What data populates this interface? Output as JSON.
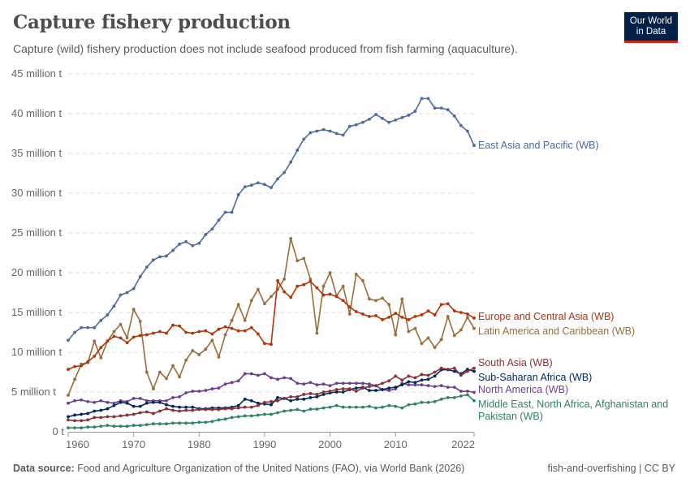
{
  "header": {
    "title": "Capture fishery production",
    "subtitle": "Capture (wild) fishery production does not include seafood produced from fish farming (aquaculture).",
    "logo_line1": "Our World",
    "logo_line2": "in Data"
  },
  "footer": {
    "source_label": "Data source:",
    "source_text": "Food and Agriculture Organization of the United Nations (FAO), via World Bank (2026)",
    "right": "fish-and-overfishing | CC BY"
  },
  "chart_data": {
    "type": "line",
    "title": "Capture fishery production",
    "xlabel": "",
    "ylabel": "",
    "xlim": [
      1960,
      2022
    ],
    "ylim": [
      0,
      45
    ],
    "y_ticks": [
      0,
      5,
      10,
      15,
      20,
      25,
      30,
      35,
      40,
      45
    ],
    "y_tick_labels": [
      "0 t",
      "5 million t",
      "10 million t",
      "15 million t",
      "20 million t",
      "25 million t",
      "30 million t",
      "35 million t",
      "40 million t",
      "45 million t"
    ],
    "x_ticks": [
      1960,
      1970,
      1980,
      1990,
      2000,
      2010,
      2022
    ],
    "x_tick_labels": [
      "1960",
      "1970",
      "1980",
      "1990",
      "2000",
      "2010",
      "2022"
    ],
    "grid": "horizontal dashed",
    "legend": "inline labels at right end",
    "x_start": 1960,
    "series": [
      {
        "name": "East Asia and Pacific (WB)",
        "color": "#4c6a9c",
        "values": [
          11.5,
          12.5,
          13.1,
          13.1,
          13.1,
          14.0,
          14.7,
          15.8,
          17.2,
          17.5,
          18.0,
          19.5,
          20.7,
          21.6,
          22.0,
          22.1,
          22.8,
          23.6,
          23.9,
          23.4,
          23.7,
          24.8,
          25.5,
          26.6,
          27.6,
          27.6,
          29.8,
          30.8,
          31.0,
          31.3,
          31.1,
          30.7,
          31.8,
          32.6,
          33.9,
          35.4,
          36.8,
          37.6,
          37.8,
          38.0,
          37.8,
          37.5,
          37.3,
          38.4,
          38.6,
          38.9,
          39.3,
          39.9,
          39.4,
          38.9,
          39.2,
          39.5,
          39.8,
          40.3,
          41.9,
          41.9,
          40.7,
          40.7,
          40.5,
          39.7,
          38.5,
          37.8,
          36.0
        ]
      },
      {
        "name": "Europe and Central Asia (WB)",
        "color": "#b13507",
        "values": [
          7.85,
          8.2,
          8.3,
          8.8,
          9.5,
          10.6,
          11.4,
          12.0,
          11.8,
          11.2,
          11.9,
          12.1,
          12.2,
          12.4,
          12.6,
          12.4,
          13.4,
          13.3,
          12.5,
          12.4,
          12.6,
          12.7,
          12.3,
          12.9,
          13.2,
          13.0,
          12.7,
          12.7,
          13.1,
          12.3,
          11.1,
          11.0,
          19.0,
          17.6,
          16.9,
          18.3,
          18.5,
          18.9,
          18.1,
          17.2,
          17.3,
          17.0,
          16.5,
          15.7,
          15.1,
          14.8,
          14.5,
          14.6,
          14.1,
          14.4,
          14.9,
          14.4,
          14.1,
          14.5,
          14.7,
          15.2,
          14.7,
          16.0,
          16.1,
          15.2,
          15.0,
          14.8,
          14.3
        ]
      },
      {
        "name": "Latin America and Caribbean (WB)",
        "color": "#996d39",
        "values": [
          4.6,
          6.6,
          8.5,
          8.7,
          11.4,
          9.3,
          11.4,
          12.6,
          13.5,
          11.8,
          15.4,
          13.9,
          7.5,
          5.4,
          7.5,
          6.7,
          8.3,
          6.9,
          9.0,
          10.2,
          9.7,
          10.4,
          11.5,
          9.4,
          12.2,
          14.0,
          16.0,
          14.0,
          16.5,
          17.9,
          16.1,
          17.0,
          17.9,
          19.2,
          24.3,
          21.5,
          21.8,
          19.2,
          12.4,
          18.3,
          20.0,
          17.1,
          18.3,
          14.8,
          19.8,
          19.0,
          16.7,
          16.5,
          16.8,
          16.0,
          12.2,
          16.7,
          12.6,
          13.0,
          11.1,
          11.8,
          10.6,
          11.6,
          14.5,
          12.1,
          12.8,
          14.4,
          13.0
        ]
      },
      {
        "name": "South Asia (WB)",
        "color": "#883039",
        "values": [
          1.5,
          1.4,
          1.4,
          1.5,
          1.8,
          1.8,
          1.9,
          1.9,
          2.0,
          2.1,
          2.2,
          2.4,
          2.5,
          2.3,
          2.6,
          2.9,
          2.7,
          2.6,
          2.7,
          2.7,
          2.8,
          2.8,
          2.8,
          2.8,
          2.9,
          2.9,
          3.0,
          3.1,
          3.1,
          3.3,
          3.7,
          3.8,
          3.9,
          4.2,
          4.4,
          4.4,
          4.7,
          4.8,
          4.7,
          5.0,
          5.1,
          5.3,
          5.4,
          5.4,
          5.1,
          5.5,
          5.7,
          5.8,
          6.1,
          6.4,
          7.0,
          6.5,
          7.0,
          6.8,
          7.2,
          7.1,
          7.5,
          8.0,
          7.85,
          8.0,
          7.1,
          7.6,
          8.0
        ]
      },
      {
        "name": "Sub-Saharan Africa (WB)",
        "color": "#00295b",
        "values": [
          1.9,
          2.1,
          2.2,
          2.3,
          2.6,
          2.7,
          2.9,
          3.3,
          3.7,
          3.6,
          3.2,
          3.2,
          3.6,
          3.7,
          3.7,
          3.4,
          3.2,
          3.1,
          3.1,
          3.1,
          2.9,
          2.9,
          3.0,
          3.0,
          3.0,
          3.1,
          3.3,
          4.1,
          3.9,
          3.6,
          3.5,
          3.4,
          4.3,
          4.2,
          3.9,
          4.1,
          4.1,
          4.3,
          4.4,
          4.7,
          4.9,
          5.0,
          5.0,
          5.3,
          5.5,
          5.6,
          5.2,
          5.2,
          5.3,
          5.5,
          5.6,
          5.9,
          6.3,
          6.2,
          6.5,
          6.6,
          7.0,
          7.8,
          7.8,
          7.6,
          7.3,
          7.85,
          7.6
        ]
      },
      {
        "name": "North America (WB)",
        "color": "#6d3e91",
        "values": [
          3.6,
          3.9,
          4.0,
          3.8,
          3.7,
          3.9,
          3.7,
          3.6,
          3.9,
          3.8,
          4.2,
          4.2,
          3.9,
          3.9,
          3.9,
          3.9,
          4.3,
          4.4,
          4.9,
          5.1,
          5.1,
          5.2,
          5.4,
          5.5,
          6.0,
          6.2,
          6.4,
          7.3,
          7.3,
          7.1,
          7.3,
          6.8,
          6.6,
          6.8,
          6.7,
          6.1,
          6.0,
          6.2,
          5.9,
          6.0,
          5.8,
          6.1,
          6.1,
          6.1,
          6.1,
          6.1,
          6.0,
          5.8,
          5.3,
          5.2,
          5.4,
          6.1,
          5.9,
          5.9,
          5.9,
          5.8,
          5.7,
          5.8,
          5.6,
          5.6,
          5.1,
          5.1,
          4.96
        ]
      },
      {
        "name": "Middle East, North Africa, Afghanistan and Pakistan (WB)",
        "color": "#2c8465",
        "values": [
          0.5,
          0.5,
          0.5,
          0.6,
          0.6,
          0.7,
          0.8,
          0.7,
          0.7,
          0.7,
          0.8,
          0.8,
          0.9,
          1.0,
          1.0,
          1.0,
          1.1,
          1.1,
          1.1,
          1.1,
          1.2,
          1.2,
          1.3,
          1.5,
          1.6,
          1.8,
          1.9,
          2.0,
          2.0,
          2.1,
          2.2,
          2.2,
          2.4,
          2.6,
          2.7,
          2.8,
          2.6,
          2.85,
          2.85,
          3.0,
          3.1,
          3.3,
          3.1,
          3.1,
          3.1,
          3.1,
          3.2,
          3.0,
          3.1,
          3.3,
          3.2,
          3.0,
          3.4,
          3.5,
          3.7,
          3.7,
          3.8,
          4.1,
          4.3,
          4.3,
          4.5,
          4.65,
          3.9
        ]
      }
    ]
  }
}
